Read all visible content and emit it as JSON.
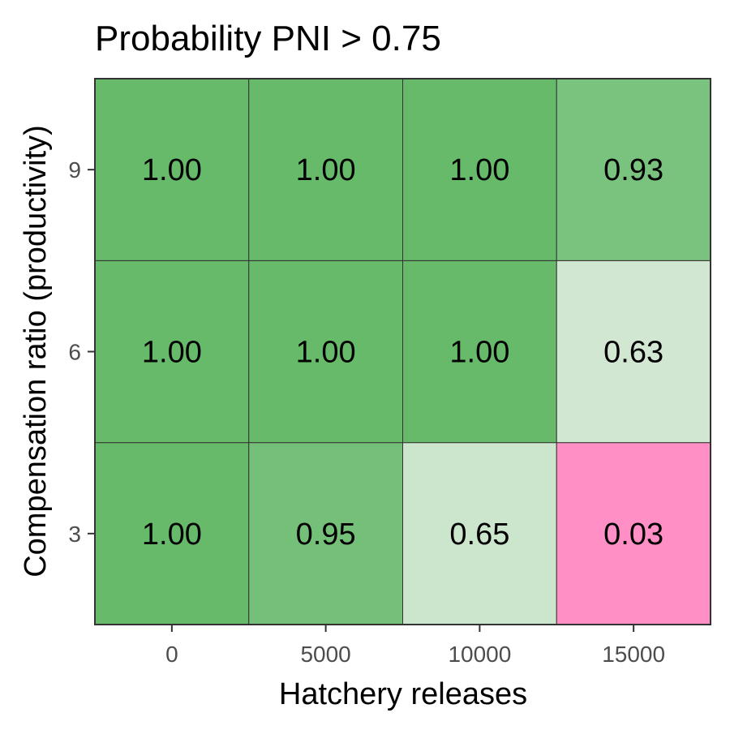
{
  "chart_data": {
    "type": "heatmap",
    "title": "Probability PNI > 0.75",
    "xlabel": "Hatchery releases",
    "ylabel": "Compensation ratio (productivity)",
    "x": [
      "0",
      "5000",
      "10000",
      "15000"
    ],
    "y": [
      "3",
      "6",
      "9"
    ],
    "values": [
      [
        1.0,
        0.95,
        0.65,
        0.03
      ],
      [
        1.0,
        1.0,
        1.0,
        0.63
      ],
      [
        1.0,
        1.0,
        1.0,
        0.93
      ]
    ],
    "labels": [
      [
        "1.00",
        "0.95",
        "0.65",
        "0.03"
      ],
      [
        "1.00",
        "1.00",
        "1.00",
        "0.63"
      ],
      [
        "1.00",
        "1.00",
        "1.00",
        "0.93"
      ]
    ],
    "colors": {
      "high": "#66ba6a",
      "mid": "#f7f7f7",
      "low": "#ff88c2",
      "midpoint": 0.5
    },
    "grid": false,
    "legend": "none"
  }
}
